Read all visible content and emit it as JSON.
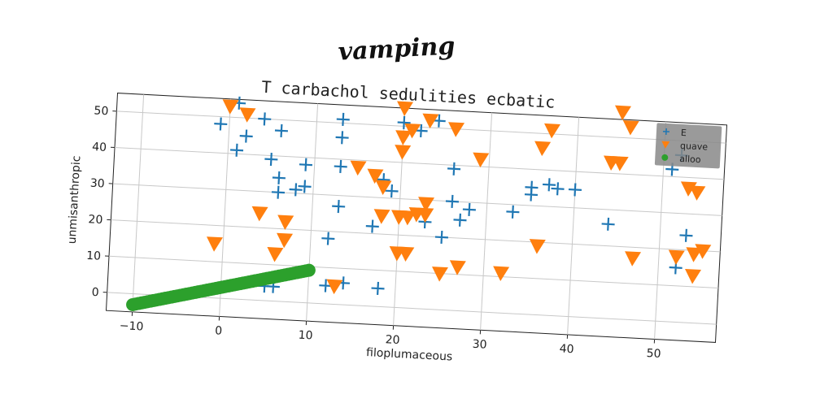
{
  "chart_data": {
    "type": "scatter",
    "suptitle": "vamping",
    "title": "T carbachol sedulities ecbatic",
    "xlabel": "filoplumaceous",
    "ylabel": "unmisanthropic",
    "xlim": [
      -13,
      57
    ],
    "ylim": [
      -5,
      55
    ],
    "xticks": [
      -10,
      0,
      10,
      20,
      30,
      40,
      50
    ],
    "yticks": [
      0,
      10,
      20,
      30,
      40,
      50
    ],
    "grid": true,
    "legend_position": "top-right",
    "series": [
      {
        "name": "E",
        "marker": "plus",
        "color": "#1f77b4",
        "points": [
          [
            -1,
            48
          ],
          [
            1,
            54
          ],
          [
            2,
            45
          ],
          [
            1,
            41
          ],
          [
            4,
            50
          ],
          [
            6,
            47
          ],
          [
            5,
            39
          ],
          [
            6,
            34
          ],
          [
            6,
            30
          ],
          [
            8,
            31
          ],
          [
            9,
            38
          ],
          [
            9,
            32
          ],
          [
            13,
            51
          ],
          [
            13,
            46
          ],
          [
            13,
            38
          ],
          [
            13,
            27
          ],
          [
            12,
            18
          ],
          [
            12,
            5
          ],
          [
            14,
            6
          ],
          [
            18,
            5
          ],
          [
            6,
            4
          ],
          [
            5,
            4
          ],
          [
            20,
            51
          ],
          [
            22,
            49
          ],
          [
            18,
            35
          ],
          [
            17,
            22
          ],
          [
            19,
            32
          ],
          [
            23,
            24
          ],
          [
            25,
            20
          ],
          [
            26,
            30
          ],
          [
            27,
            25
          ],
          [
            28,
            28
          ],
          [
            24,
            52
          ],
          [
            26,
            39
          ],
          [
            33,
            28
          ],
          [
            35,
            33
          ],
          [
            35,
            35
          ],
          [
            37,
            36
          ],
          [
            38,
            35
          ],
          [
            40,
            35
          ],
          [
            44,
            26
          ],
          [
            52,
            46
          ],
          [
            51,
            42
          ],
          [
            53,
            24
          ],
          [
            52,
            15
          ]
        ]
      },
      {
        "name": "quave",
        "marker": "triangle_down",
        "color": "#ff7f0e",
        "points": [
          [
            0,
            53
          ],
          [
            2,
            51
          ],
          [
            -1,
            15
          ],
          [
            4,
            24
          ],
          [
            6,
            13
          ],
          [
            7,
            17
          ],
          [
            7,
            22
          ],
          [
            13,
            5
          ],
          [
            15,
            38
          ],
          [
            17,
            36
          ],
          [
            18,
            33
          ],
          [
            18,
            25
          ],
          [
            20,
            55
          ],
          [
            20,
            47
          ],
          [
            20,
            43
          ],
          [
            21,
            49
          ],
          [
            20,
            25
          ],
          [
            21,
            25
          ],
          [
            22,
            26
          ],
          [
            23,
            29
          ],
          [
            23,
            26
          ],
          [
            20,
            15
          ],
          [
            21,
            15
          ],
          [
            25,
            10
          ],
          [
            27,
            12
          ],
          [
            23,
            52
          ],
          [
            26,
            50
          ],
          [
            29,
            42
          ],
          [
            32,
            11
          ],
          [
            36,
            46
          ],
          [
            36,
            19
          ],
          [
            37,
            51
          ],
          [
            44,
            43
          ],
          [
            45,
            43
          ],
          [
            45,
            57
          ],
          [
            46,
            53
          ],
          [
            47,
            17
          ],
          [
            52,
            18
          ],
          [
            54,
            19
          ],
          [
            53,
            37
          ],
          [
            54,
            36
          ],
          [
            55,
            20
          ],
          [
            54,
            13
          ]
        ]
      },
      {
        "name": "alloo",
        "marker": "circle",
        "color": "#2ca02c",
        "line": {
          "x_start": -10,
          "y_start": -3,
          "x_end": 10,
          "y_end": 9,
          "count": 60
        }
      }
    ]
  }
}
